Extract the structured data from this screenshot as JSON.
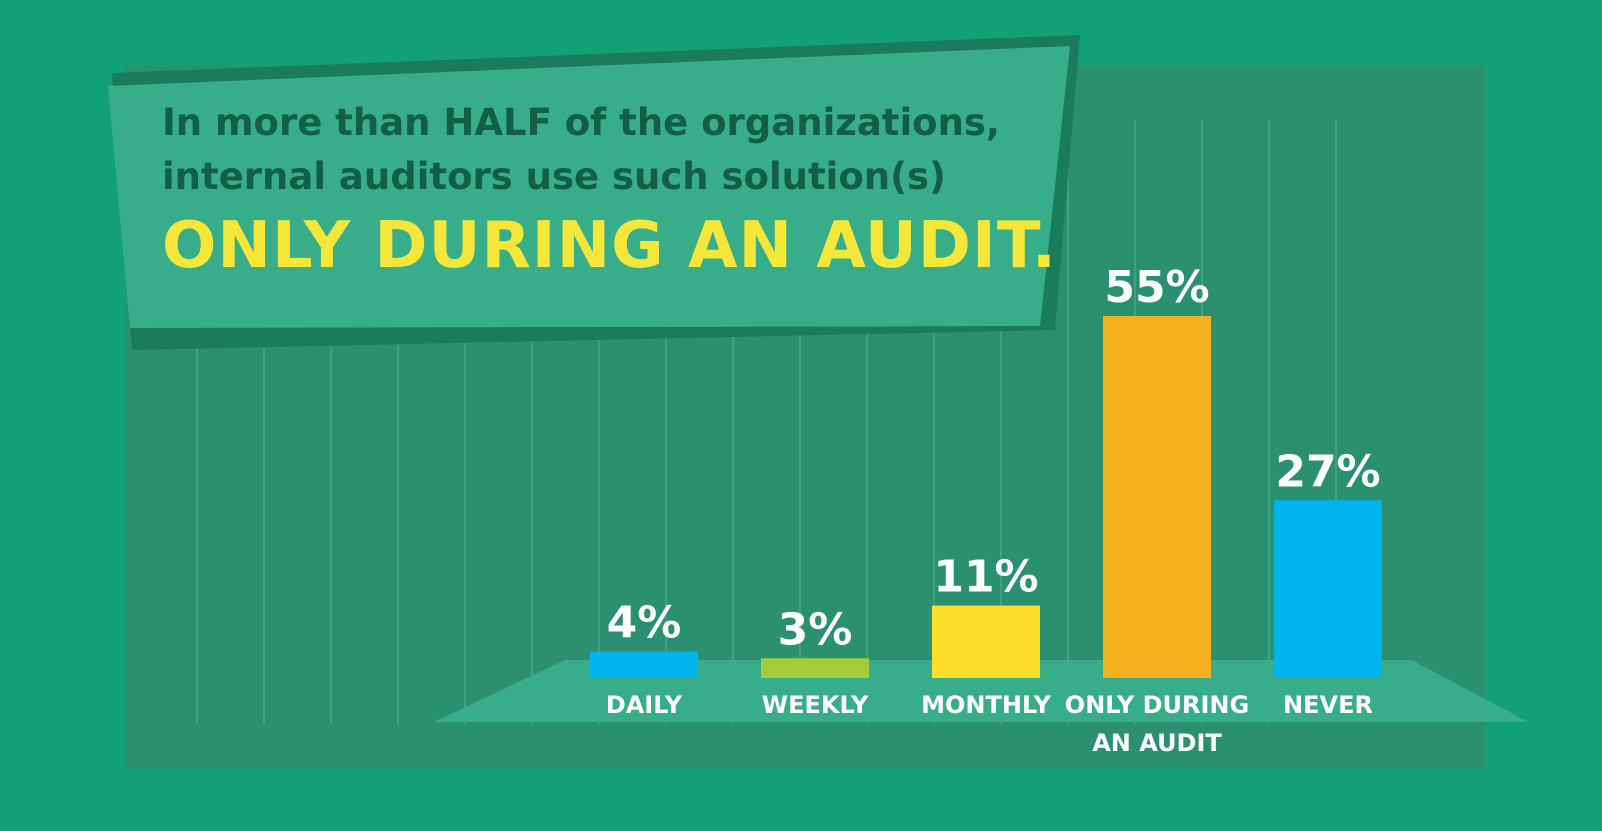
{
  "header": {
    "lead_line_1": "In more than HALF of the organizations,",
    "lead_line_2": "internal auditors use such solution(s)",
    "headline": "ONLY DURING AN AUDIT."
  },
  "colors": {
    "background": "#12a077",
    "panel": "#2a9070",
    "banner": "#37ad89",
    "banner_shadow": "#1b7c5b",
    "floor": "#37ad89",
    "lead_text": "#125e46",
    "headline_text": "#f5e63a",
    "value_text": "#ffffff"
  },
  "chart_data": {
    "type": "bar",
    "title": "",
    "xlabel": "",
    "ylabel": "",
    "categories": [
      [
        "DAILY"
      ],
      [
        "WEEKLY"
      ],
      [
        "MONTHLY"
      ],
      [
        "ONLY DURING",
        "AN AUDIT"
      ],
      [
        "NEVER"
      ]
    ],
    "values": [
      4,
      3,
      11,
      55,
      27
    ],
    "value_labels": [
      "4%",
      "3%",
      "11%",
      "55%",
      "27%"
    ],
    "bar_colors": [
      "#00b4ee",
      "#a3cc3a",
      "#fddf2b",
      "#f5b120",
      "#00b4ee"
    ],
    "ylim": [
      0,
      60
    ],
    "grid": false,
    "legend": "none"
  }
}
